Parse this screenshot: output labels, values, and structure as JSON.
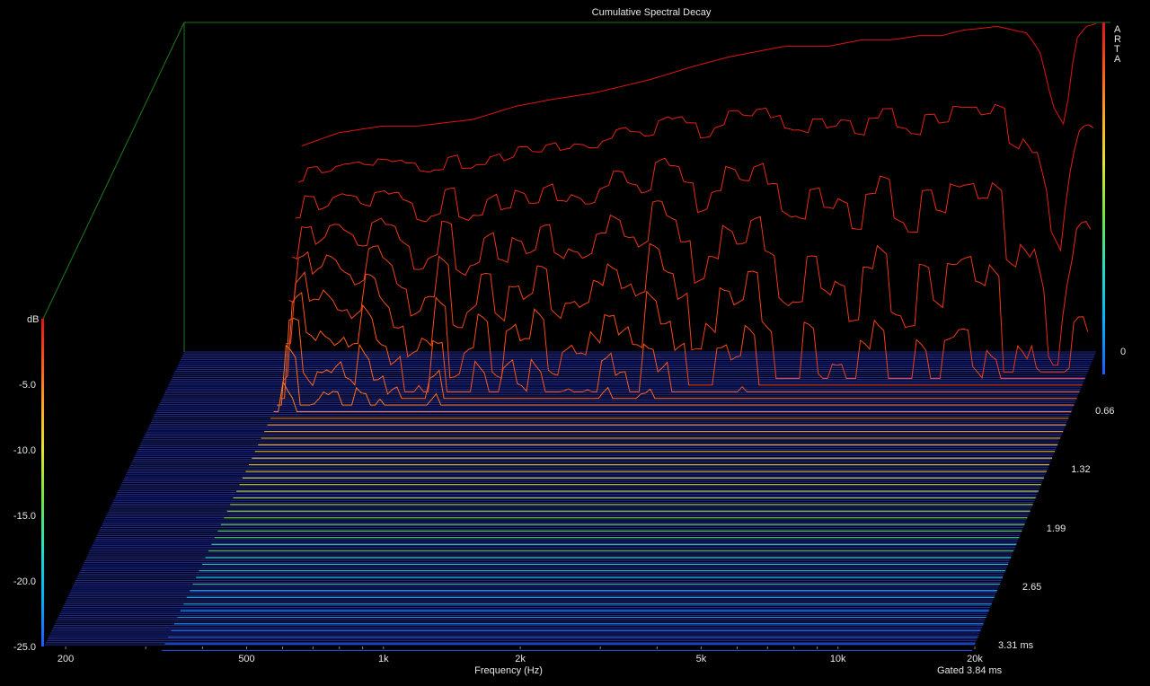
{
  "chart_data": {
    "type": "waterfall",
    "title": "Cumulative Spectral Decay",
    "xlabel": "Frequency (Hz)",
    "zlabel": "dB",
    "time_label": "Gated 3.84 ms",
    "brand": "ARTA",
    "x_scale": "log",
    "xlim": [
      180,
      20000
    ],
    "zlim": [
      -25,
      0
    ],
    "time_range_ms": [
      0,
      3.31
    ],
    "x_ticks": [
      {
        "value": 200,
        "label": "200"
      },
      {
        "value": 500,
        "label": "500"
      },
      {
        "value": 1000,
        "label": "1k"
      },
      {
        "value": 2000,
        "label": "2k"
      },
      {
        "value": 5000,
        "label": "5k"
      },
      {
        "value": 10000,
        "label": "10k"
      },
      {
        "value": 20000,
        "label": "20k"
      }
    ],
    "z_ticks": [
      {
        "value": -5,
        "label": "-5.0"
      },
      {
        "value": -10,
        "label": "-10.0"
      },
      {
        "value": -15,
        "label": "-15.0"
      },
      {
        "value": -20,
        "label": "-20.0"
      },
      {
        "value": -25,
        "label": "-25.0"
      }
    ],
    "t_ticks": [
      {
        "value": 0,
        "label": "0"
      },
      {
        "value": 0.66,
        "label": "0.66"
      },
      {
        "value": 1.32,
        "label": "1.32"
      },
      {
        "value": 1.99,
        "label": "1.99"
      },
      {
        "value": 2.65,
        "label": "2.65"
      },
      {
        "value": 3.31,
        "label": "3.31 ms"
      }
    ],
    "series": [
      {
        "time_ms": 0,
        "frequency_hz": [
          330,
          400,
          500,
          600,
          800,
          1000,
          1200,
          1500,
          2000,
          2500,
          3000,
          4000,
          5000,
          6000,
          7000,
          8000,
          9000,
          10000,
          12000,
          14000,
          15000,
          16000,
          17000,
          18000,
          19000,
          20000
        ],
        "level_db": [
          -9.5,
          -8.5,
          -8,
          -8,
          -7.5,
          -6.5,
          -6,
          -5.5,
          -4.5,
          -3.5,
          -2.8,
          -2,
          -2,
          -1.5,
          -1.5,
          -1.2,
          -1.2,
          -0.8,
          -0.5,
          -1,
          -2.5,
          -6.5,
          -8,
          -1.5,
          -0.5,
          -0.3
        ]
      }
    ],
    "colorscale": [
      "#1f5aff",
      "#00b4ff",
      "#22e0c8",
      "#6ee840",
      "#e6e62a",
      "#ffb020",
      "#ff5a1a",
      "#e01414"
    ]
  }
}
